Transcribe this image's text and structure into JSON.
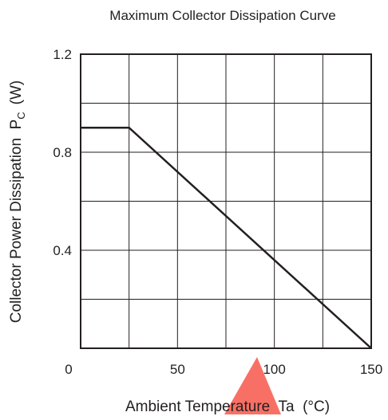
{
  "chart_data": {
    "type": "line",
    "title": "Maximum Collector Dissipation Curve",
    "xlabel": "Ambient Temperature  Ta  (°C)",
    "ylabel": {
      "main": "Collector Power Dissipation  P",
      "sub": "C",
      "unit": "(W)"
    },
    "xlim": [
      0,
      150
    ],
    "ylim": [
      0,
      1.2
    ],
    "x_grid_step": 25,
    "y_grid_step": 0.2,
    "x_ticks": [
      {
        "value": 0,
        "label": "0"
      },
      {
        "value": 50,
        "label": "50"
      },
      {
        "value": 100,
        "label": "100"
      },
      {
        "value": 150,
        "label": "150"
      }
    ],
    "y_ticks": [
      {
        "value": 1.2,
        "label": "1.2"
      },
      {
        "value": 0.8,
        "label": "0.8"
      },
      {
        "value": 0.4,
        "label": "0.4"
      }
    ],
    "grid": true,
    "series": [
      {
        "x": [
          0,
          25,
          150
        ],
        "y": [
          0.9,
          0.9,
          0.0
        ]
      }
    ]
  },
  "colors": {
    "axis": "#231f20",
    "line": "#231f20",
    "watermark": "#f7574a"
  }
}
